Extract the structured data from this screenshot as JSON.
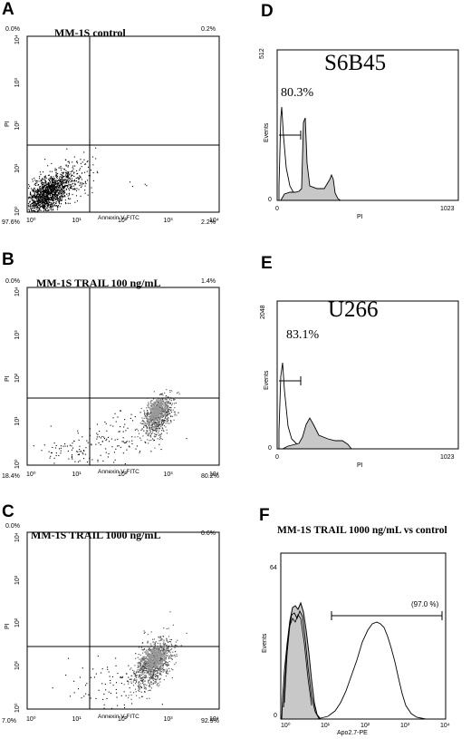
{
  "panels": {
    "A": {
      "letter": "A",
      "title": "MM-1S control",
      "quadrants": {
        "ul": "0.0%",
        "ur": "0.2%",
        "ll": "97.6%",
        "lr": "2.2%"
      },
      "xlabel": "Annexin V-FITC",
      "ylabel": "PI",
      "xticks": [
        "10⁰",
        "10¹",
        "10²",
        "10³",
        "10⁴"
      ],
      "yticks": [
        "10⁰",
        "10¹",
        "10²",
        "10³",
        "10⁴"
      ]
    },
    "B": {
      "letter": "B",
      "title": "MM-1S TRAIL 100 ng/mL",
      "quadrants": {
        "ul": "0.0%",
        "ur": "1.4%",
        "ll": "18.4%",
        "lr": "80.2%"
      },
      "xlabel": "Annexin V-FITC",
      "ylabel": "PI",
      "xticks": [
        "10⁰",
        "10¹",
        "10²",
        "10³",
        "10⁴"
      ],
      "yticks": [
        "10⁰",
        "10¹",
        "10²",
        "10³",
        "10⁴"
      ]
    },
    "C": {
      "letter": "C",
      "title": "MM-1S TRAIL 1000 ng/mL",
      "quadrants": {
        "ul": "0.0%",
        "ur": "0.6%",
        "ll": "7.0%",
        "lr": "92.5%"
      },
      "xlabel": "Annexin V-FITC",
      "ylabel": "PI",
      "xticks": [
        "10⁰",
        "10¹",
        "10²",
        "10³",
        "10⁴"
      ],
      "yticks": [
        "10⁰",
        "10¹",
        "10²",
        "10³",
        "10⁴"
      ]
    },
    "D": {
      "letter": "D",
      "title": "S6B45",
      "gate_pct": "80.3%",
      "ymax": "512",
      "ymin": "0",
      "xmin": "0",
      "xmax": "1023",
      "ylabel": "Events",
      "xlabel": "PI"
    },
    "E": {
      "letter": "E",
      "title": "U266",
      "gate_pct": "83.1%",
      "ymax": "2048",
      "ymin": "0",
      "xmin": "0",
      "xmax": "1023",
      "ylabel": "Events",
      "xlabel": "PI"
    },
    "F": {
      "letter": "F",
      "title": "MM-1S TRAIL 1000 ng/mL vs control",
      "gate_pct": "(97.0 %)",
      "ymax": "64",
      "ymin": "0",
      "ylabel": "Events",
      "xlabel": "Apo2.7-PE",
      "xticks": [
        "10⁰",
        "10¹",
        "10²",
        "10³",
        "10⁴"
      ]
    }
  },
  "colors": {
    "fill_gray": "#c8c8c8",
    "ink": "#000000"
  }
}
